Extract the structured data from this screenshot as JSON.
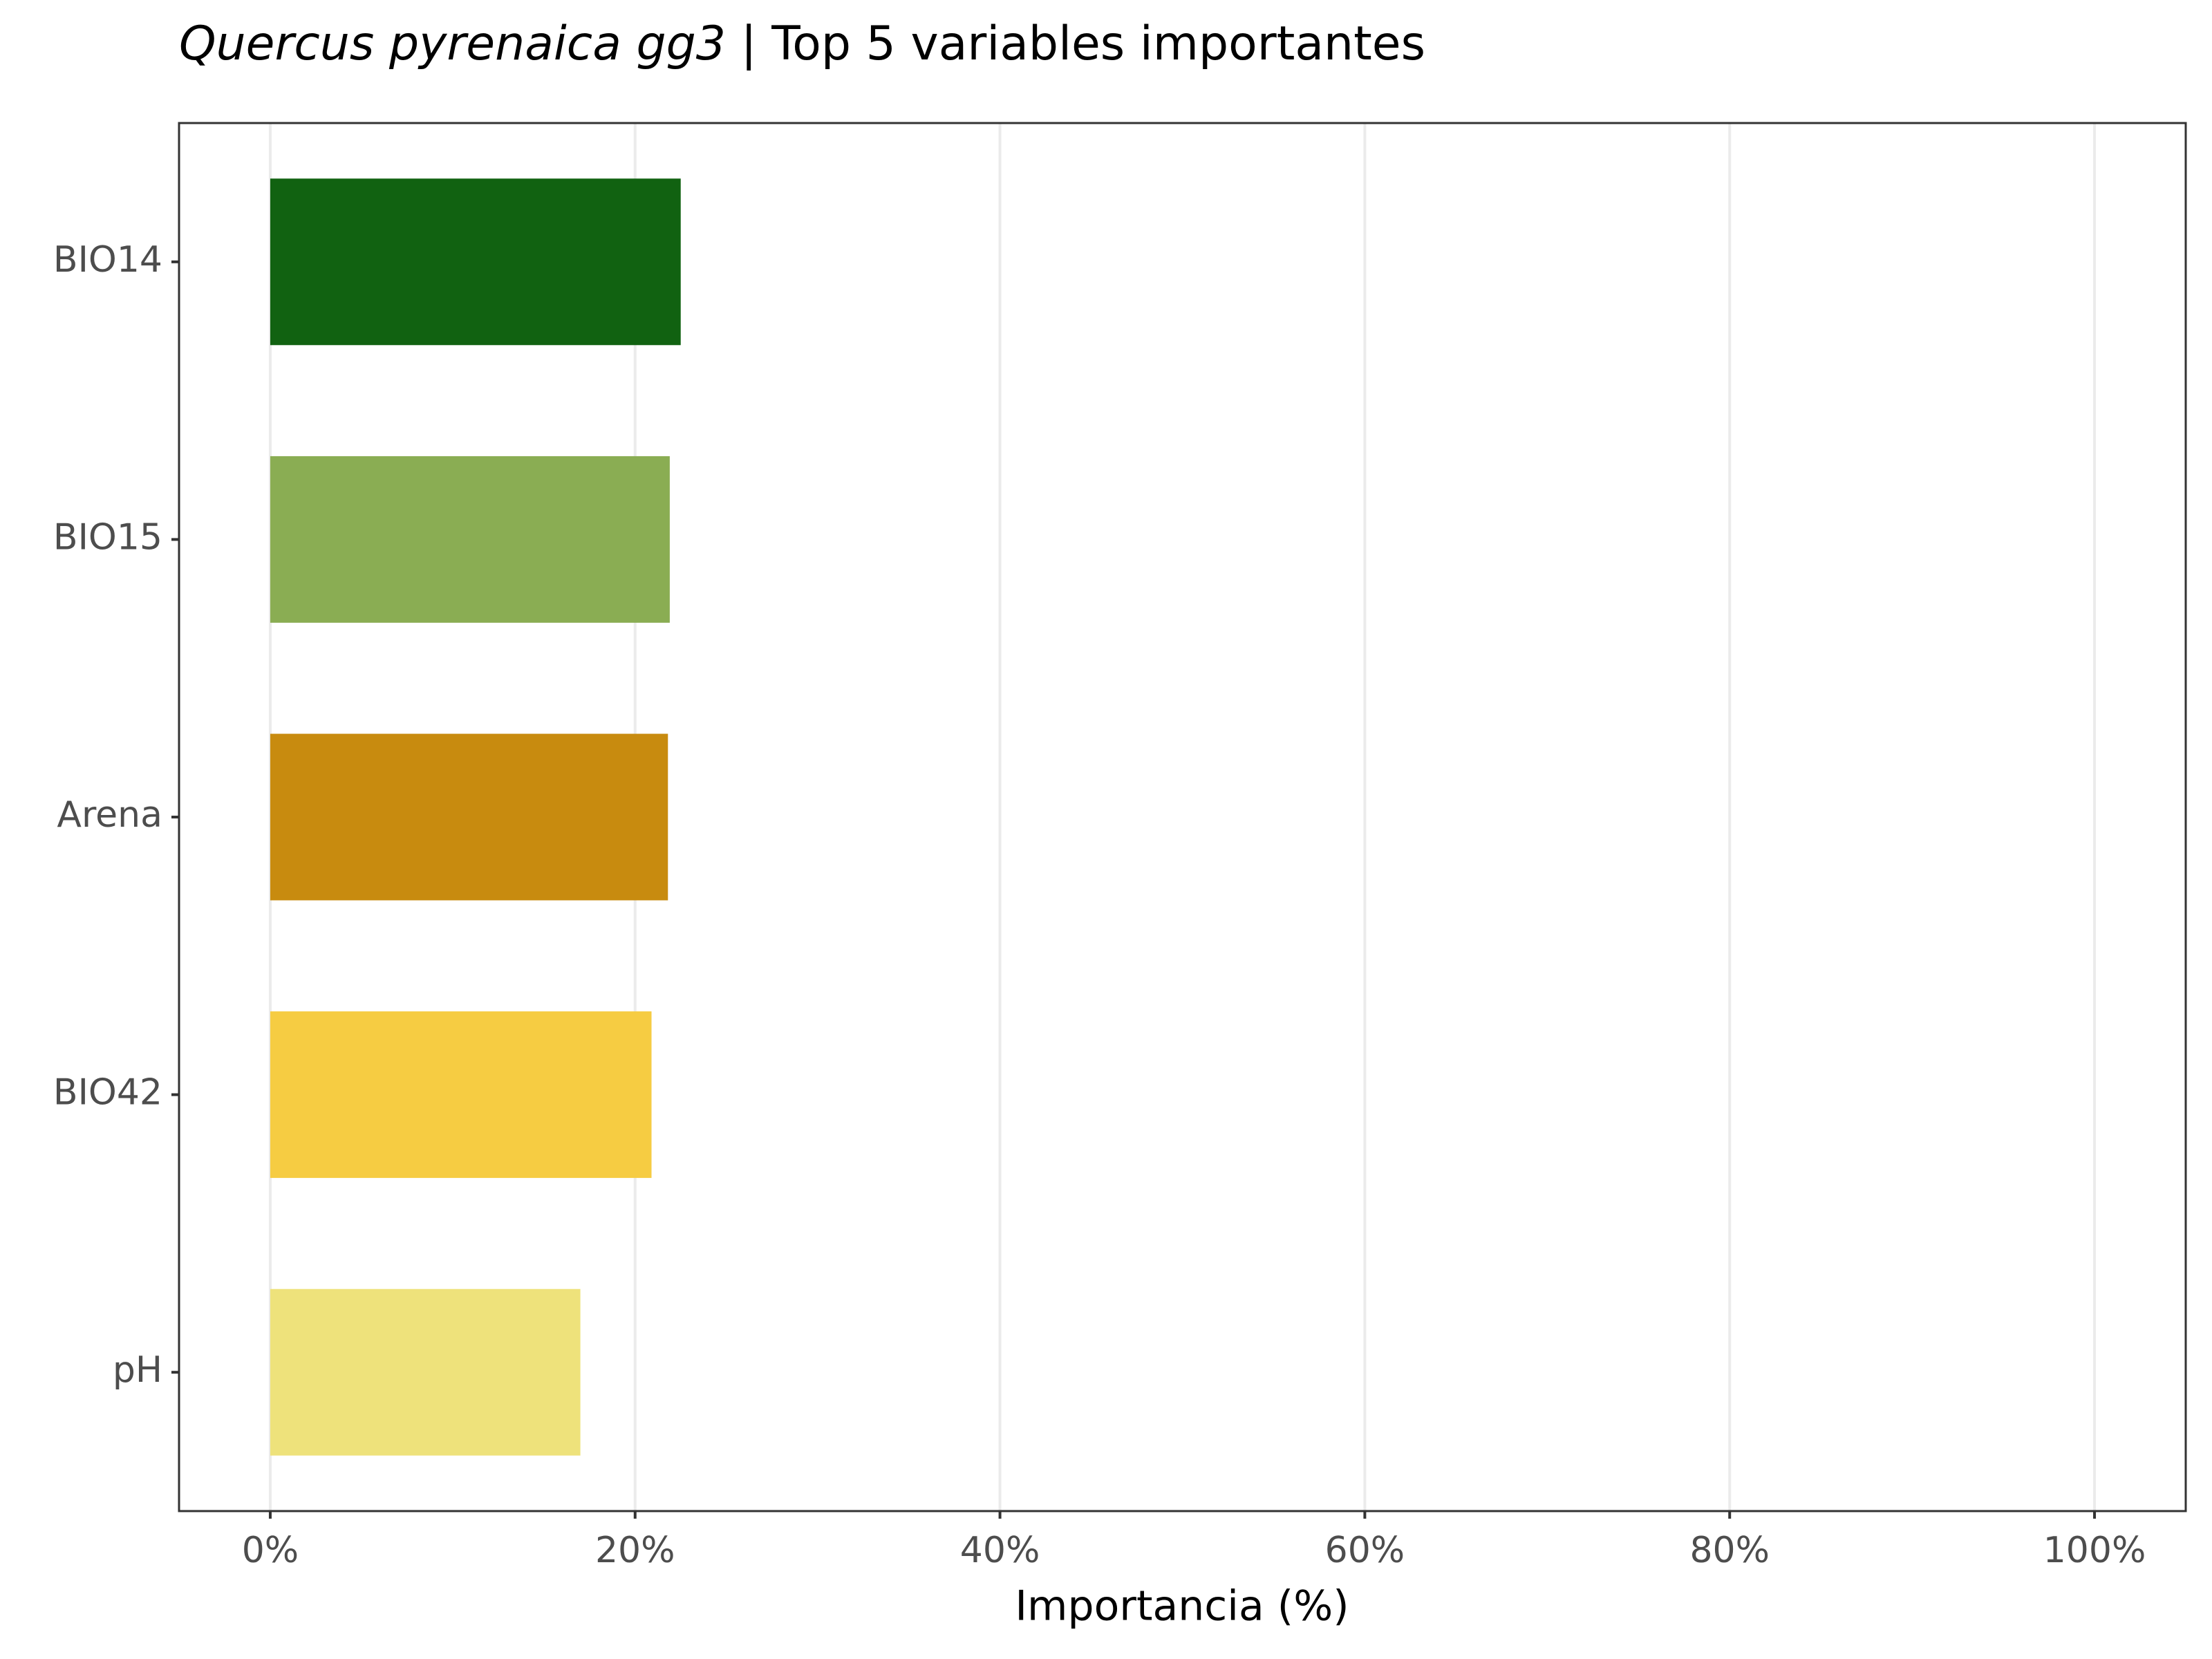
{
  "chart_data": {
    "type": "hbar",
    "title_species": "Quercus pyrenaica gg3",
    "title": "| Top 5 variables importantes",
    "x_label": "Importancia (%)",
    "categories": [
      "BIO14",
      "BIO15",
      "Arena",
      "BIO42",
      "pH"
    ],
    "values": [
      22.5,
      21.9,
      21.8,
      20.9,
      17.0
    ],
    "colors": [
      "#116211",
      "#8aad53",
      "#c88b0f",
      "#f6cc42",
      "#eee27b"
    ],
    "xlim": [
      -5,
      105
    ],
    "xticks": [
      {
        "value": 0,
        "label": "0%"
      },
      {
        "value": 20,
        "label": "20%"
      },
      {
        "value": 40,
        "label": "40%"
      },
      {
        "value": 60,
        "label": "60%"
      },
      {
        "value": 80,
        "label": "80%"
      },
      {
        "value": 100,
        "label": "100%"
      }
    ],
    "grid": true
  }
}
